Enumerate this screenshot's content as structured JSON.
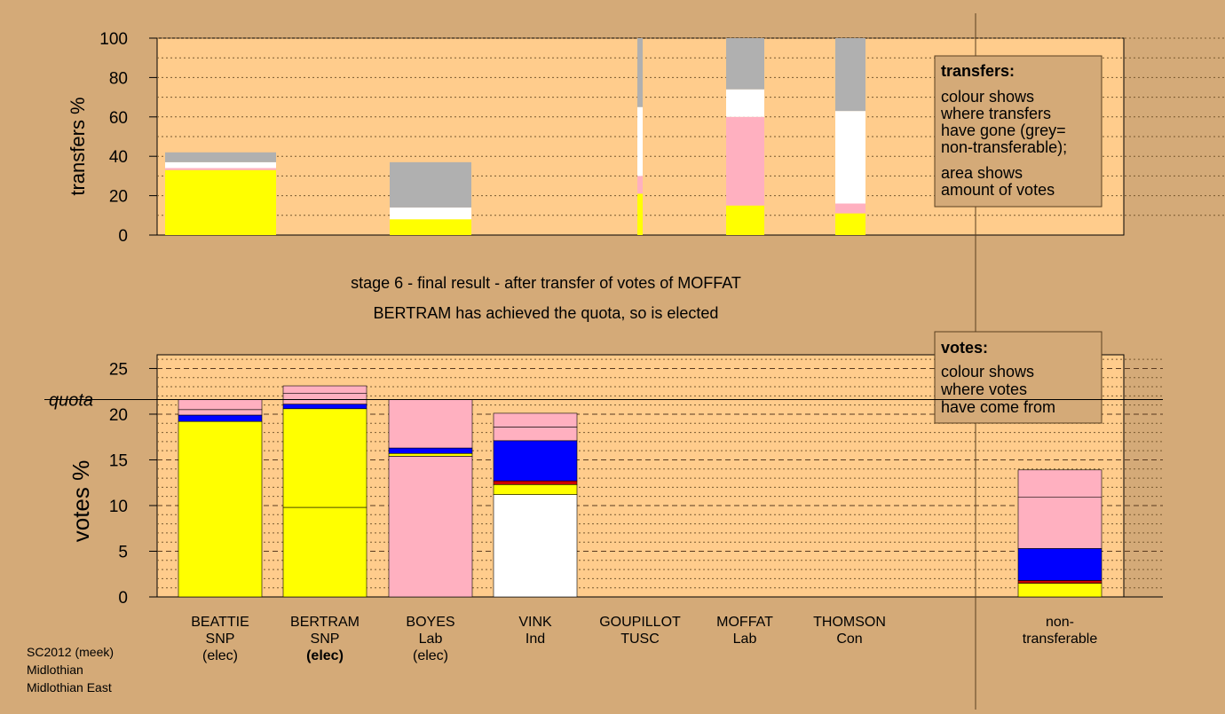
{
  "colors": {
    "page_bg": "#d4aa78",
    "plot_bg": "#ffcc8c",
    "yellow": "#ffff00",
    "white": "#ffffff",
    "pink": "#ffb0c0",
    "blue": "#0000ff",
    "red": "#cc0000",
    "grey": "#b0b0b0"
  },
  "header": {
    "line1": "stage 6 - final result - after transfer of votes of MOFFAT",
    "line2": "BERTRAM has achieved the quota, so is elected"
  },
  "footer": [
    "SC2012 (meek)",
    "Midlothian",
    "Midlothian East"
  ],
  "legend_transfers": {
    "title": "transfers:",
    "lines": [
      "colour shows",
      "where transfers",
      "have gone (grey=",
      "non-transferable);"
    ],
    "lines2": [
      "area shows",
      "amount of votes"
    ]
  },
  "legend_votes": {
    "title": "votes:",
    "lines": [
      "colour shows",
      "where votes",
      "have come from"
    ]
  },
  "candidates": [
    {
      "name": "BEATTIE",
      "party": "SNP",
      "status": "(elec)",
      "bold_status": false
    },
    {
      "name": "BERTRAM",
      "party": "SNP",
      "status": "(elec)",
      "bold_status": true
    },
    {
      "name": "BOYES",
      "party": "Lab",
      "status": "(elec)",
      "bold_status": false
    },
    {
      "name": "VINK",
      "party": "Ind",
      "status": "",
      "bold_status": false
    },
    {
      "name": "GOUPILLOT",
      "party": "TUSC",
      "status": "",
      "bold_status": false
    },
    {
      "name": "MOFFAT",
      "party": "Lab",
      "status": "",
      "bold_status": false
    },
    {
      "name": "THOMSON",
      "party": "Con",
      "status": "",
      "bold_status": false
    },
    {
      "name": "non-",
      "party": "transferable",
      "status": "",
      "bold_status": false
    }
  ],
  "chart_data": [
    {
      "type": "bar",
      "ylabel": "transfers %",
      "ylim": [
        0,
        100
      ],
      "yticks": [
        0,
        20,
        40,
        60,
        80,
        100
      ],
      "bars": [
        {
          "segments": [
            {
              "color": "yellow",
              "value": 33
            },
            {
              "color": "pink",
              "value": 1
            },
            {
              "color": "white",
              "value": 3
            },
            {
              "color": "grey",
              "value": 5
            }
          ]
        },
        {
          "segments": []
        },
        {
          "segments": [
            {
              "color": "yellow",
              "value": 8
            },
            {
              "color": "white",
              "value": 6
            },
            {
              "color": "grey",
              "value": 23
            }
          ]
        },
        {
          "segments": [
            {
              "color": "yellow",
              "value": 21
            },
            {
              "color": "pink",
              "value": 9
            },
            {
              "color": "white",
              "value": 35
            },
            {
              "color": "grey",
              "value": 35
            }
          ]
        },
        {
          "segments": [
            {
              "color": "yellow",
              "value": 15
            },
            {
              "color": "pink",
              "value": 45
            },
            {
              "color": "white",
              "value": 14
            },
            {
              "color": "grey",
              "value": 26
            }
          ]
        },
        {
          "segments": [
            {
              "color": "yellow",
              "value": 11
            },
            {
              "color": "pink",
              "value": 5
            },
            {
              "color": "white",
              "value": 47
            },
            {
              "color": "grey",
              "value": 37
            }
          ]
        }
      ]
    },
    {
      "type": "bar",
      "ylabel": "votes %",
      "ylim": [
        0,
        26.5
      ],
      "yticks": [
        0,
        5,
        10,
        15,
        20,
        25
      ],
      "quota_label": "quota",
      "quota": 21.6,
      "bars": [
        {
          "segments": [
            {
              "color": "yellow",
              "value": 19.2
            },
            {
              "color": "blue",
              "value": 0.7
            },
            {
              "color": "pink",
              "value": 0.6
            },
            {
              "color": "pink",
              "value": 1.1
            }
          ]
        },
        {
          "segments": [
            {
              "color": "yellow",
              "value": 9.8
            },
            {
              "color": "yellow",
              "value": 10.8
            },
            {
              "color": "blue",
              "value": 0.5
            },
            {
              "color": "pink",
              "value": 1.2
            },
            {
              "color": "pink",
              "value": 0.8
            }
          ]
        },
        {
          "segments": [
            {
              "color": "pink",
              "value": 15.4
            },
            {
              "color": "yellow",
              "value": 0.3
            },
            {
              "color": "blue",
              "value": 0.6
            },
            {
              "color": "pink",
              "value": 5.3
            }
          ]
        },
        {
          "segments": [
            {
              "color": "white",
              "value": 11.2
            },
            {
              "color": "yellow",
              "value": 1.1
            },
            {
              "color": "red",
              "value": 0.4
            },
            {
              "color": "blue",
              "value": 4.4
            },
            {
              "color": "pink",
              "value": 1.5
            },
            {
              "color": "pink",
              "value": 1.5
            }
          ]
        },
        {
          "segments": []
        },
        {
          "segments": []
        },
        {
          "segments": []
        },
        {
          "segments": [
            {
              "color": "yellow",
              "value": 1.5
            },
            {
              "color": "red",
              "value": 0.3
            },
            {
              "color": "blue",
              "value": 3.5
            },
            {
              "color": "pink",
              "value": 5.6
            },
            {
              "color": "pink",
              "value": 3.0
            }
          ]
        }
      ]
    }
  ]
}
